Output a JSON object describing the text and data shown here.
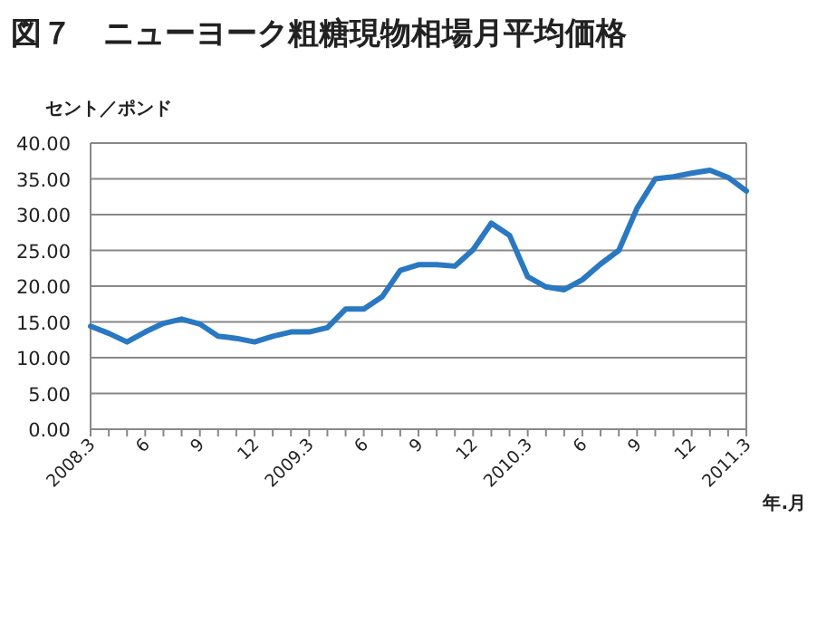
{
  "chart_data": {
    "type": "line",
    "title": "図７　ニューヨーク粗糖現物相場月平均価格",
    "ylabel": "セント／ポンド",
    "xlabel": "年.月",
    "categories": [
      "2008.3",
      null,
      null,
      "6",
      null,
      null,
      "9",
      null,
      null,
      "12",
      null,
      null,
      "2009.3",
      null,
      null,
      "6",
      null,
      null,
      "9",
      null,
      null,
      "12",
      null,
      null,
      "2010.3",
      null,
      null,
      "6",
      null,
      null,
      "9",
      null,
      null,
      "12",
      null,
      null,
      "2011.3"
    ],
    "series": [
      {
        "color": "#2a78c2",
        "values": [
          14.4,
          13.4,
          12.2,
          13.6,
          14.8,
          15.4,
          14.7,
          13.0,
          12.7,
          12.2,
          13.0,
          13.6,
          13.6,
          14.2,
          16.8,
          16.8,
          18.5,
          22.2,
          23.0,
          23.0,
          22.8,
          25.1,
          28.8,
          27.1,
          21.3,
          19.9,
          19.5,
          20.9,
          23.1,
          25.0,
          30.9,
          35.0,
          35.3,
          35.8,
          36.2,
          35.2,
          33.3
        ]
      }
    ],
    "ylim": [
      0,
      40
    ],
    "yticks": [
      {
        "value": 0,
        "label": "0.00"
      },
      {
        "value": 5,
        "label": "5.00"
      },
      {
        "value": 10,
        "label": "10.00"
      },
      {
        "value": 15,
        "label": "15.00"
      },
      {
        "value": 20,
        "label": "20.00"
      },
      {
        "value": 25,
        "label": "25.00"
      },
      {
        "value": 30,
        "label": "30.00"
      },
      {
        "value": 35,
        "label": "35.00"
      },
      {
        "value": 40,
        "label": "40.00"
      }
    ],
    "grid": "y",
    "marker": "none",
    "line_style": "solid"
  }
}
